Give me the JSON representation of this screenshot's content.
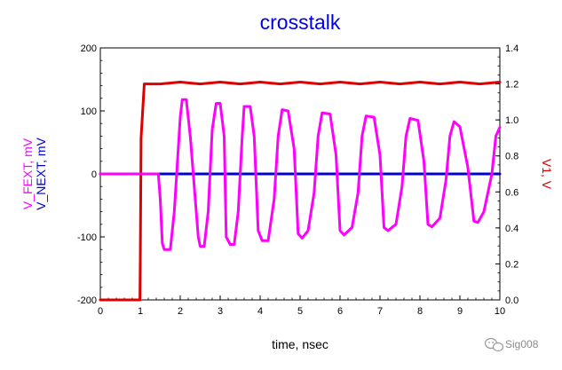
{
  "chart_data": {
    "type": "line",
    "title": "crosstalk",
    "xlabel": "time, nsec",
    "ylabel_left_lines": [
      "V_NEXT, mV",
      "V_FEXT, mV"
    ],
    "ylabel_right": "V1, V",
    "xlim": [
      0,
      10
    ],
    "ylim_left": [
      -200,
      200
    ],
    "ylim_right": [
      0.0,
      1.4
    ],
    "x_ticks": [
      "0",
      "1",
      "2",
      "3",
      "4",
      "5",
      "6",
      "7",
      "8",
      "9",
      "10"
    ],
    "y_left_ticks": [
      "200",
      "100",
      "0",
      "-100",
      "-200"
    ],
    "y_right_ticks": [
      "1.4",
      "1.2",
      "1.0",
      "0.8",
      "0.6",
      "0.4",
      "0.2",
      "0.0"
    ],
    "grid": false,
    "series": [
      {
        "name": "V1",
        "axis": "right",
        "color": "#dd0000",
        "x": [
          0.0,
          0.99,
          1.0,
          1.02,
          1.1,
          1.2,
          1.5,
          2.0,
          2.5,
          3.0,
          3.5,
          4.0,
          4.5,
          5.0,
          5.5,
          6.0,
          6.5,
          7.0,
          7.5,
          8.0,
          8.5,
          9.0,
          9.5,
          10.0
        ],
        "y": [
          0.0,
          0.0,
          0.2,
          0.9,
          1.2,
          1.2,
          1.2,
          1.21,
          1.2,
          1.21,
          1.2,
          1.21,
          1.2,
          1.21,
          1.2,
          1.21,
          1.2,
          1.21,
          1.2,
          1.21,
          1.2,
          1.21,
          1.2,
          1.21
        ]
      },
      {
        "name": "V_NEXT",
        "axis": "left",
        "color": "#0000cc",
        "x": [
          0.0,
          10.0
        ],
        "y": [
          0,
          0
        ]
      },
      {
        "name": "V_FEXT",
        "axis": "left",
        "color": "#ff00ff",
        "x": [
          0.0,
          1.45,
          1.5,
          1.55,
          1.6,
          1.75,
          1.85,
          2.0,
          2.05,
          2.15,
          2.25,
          2.45,
          2.5,
          2.6,
          2.7,
          2.8,
          2.9,
          3.0,
          3.1,
          3.15,
          3.25,
          3.35,
          3.45,
          3.55,
          3.6,
          3.75,
          3.85,
          3.95,
          4.05,
          4.2,
          4.35,
          4.45,
          4.55,
          4.7,
          4.85,
          4.95,
          5.05,
          5.2,
          5.35,
          5.45,
          5.55,
          5.75,
          5.9,
          6.0,
          6.1,
          6.3,
          6.45,
          6.55,
          6.65,
          6.85,
          7.0,
          7.1,
          7.2,
          7.4,
          7.55,
          7.65,
          7.75,
          7.95,
          8.1,
          8.2,
          8.3,
          8.5,
          8.65,
          8.75,
          8.85,
          9.0,
          9.2,
          9.35,
          9.45,
          9.6,
          9.8,
          9.9,
          10.0
        ],
        "y": [
          0,
          0,
          -40,
          -110,
          -120,
          -120,
          -60,
          90,
          118,
          118,
          60,
          -100,
          -115,
          -115,
          -60,
          70,
          112,
          112,
          60,
          -100,
          -112,
          -112,
          -60,
          60,
          107,
          107,
          60,
          -90,
          -106,
          -106,
          -40,
          60,
          102,
          100,
          40,
          -95,
          -102,
          -90,
          -30,
          60,
          97,
          95,
          30,
          -90,
          -97,
          -85,
          -30,
          60,
          92,
          90,
          30,
          -85,
          -90,
          -80,
          -20,
          60,
          88,
          85,
          20,
          -80,
          -84,
          -70,
          -10,
          60,
          83,
          75,
          10,
          -75,
          -77,
          -60,
          0,
          60,
          74
        ]
      }
    ]
  },
  "watermark": {
    "text": "Sig008",
    "icon": "wechat-icon"
  }
}
